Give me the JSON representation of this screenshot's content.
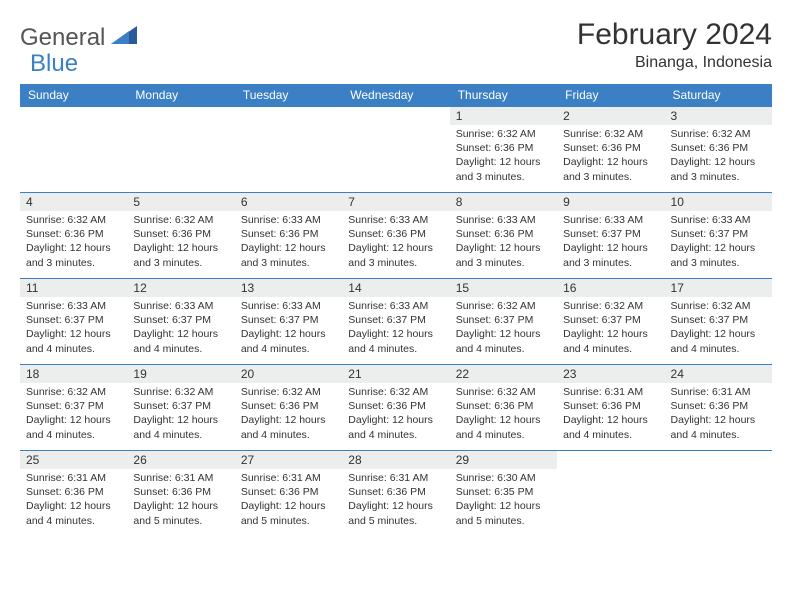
{
  "logo": {
    "general": "General",
    "blue": "Blue"
  },
  "title": "February 2024",
  "location": "Binanga, Indonesia",
  "header_color": "#3b7fc4",
  "day_names": [
    "Sunday",
    "Monday",
    "Tuesday",
    "Wednesday",
    "Thursday",
    "Friday",
    "Saturday"
  ],
  "weeks": [
    [
      {
        "day": "",
        "sunrise": "",
        "sunset": "",
        "daylight": ""
      },
      {
        "day": "",
        "sunrise": "",
        "sunset": "",
        "daylight": ""
      },
      {
        "day": "",
        "sunrise": "",
        "sunset": "",
        "daylight": ""
      },
      {
        "day": "",
        "sunrise": "",
        "sunset": "",
        "daylight": ""
      },
      {
        "day": "1",
        "sunrise": "Sunrise: 6:32 AM",
        "sunset": "Sunset: 6:36 PM",
        "daylight": "Daylight: 12 hours and 3 minutes."
      },
      {
        "day": "2",
        "sunrise": "Sunrise: 6:32 AM",
        "sunset": "Sunset: 6:36 PM",
        "daylight": "Daylight: 12 hours and 3 minutes."
      },
      {
        "day": "3",
        "sunrise": "Sunrise: 6:32 AM",
        "sunset": "Sunset: 6:36 PM",
        "daylight": "Daylight: 12 hours and 3 minutes."
      }
    ],
    [
      {
        "day": "4",
        "sunrise": "Sunrise: 6:32 AM",
        "sunset": "Sunset: 6:36 PM",
        "daylight": "Daylight: 12 hours and 3 minutes."
      },
      {
        "day": "5",
        "sunrise": "Sunrise: 6:32 AM",
        "sunset": "Sunset: 6:36 PM",
        "daylight": "Daylight: 12 hours and 3 minutes."
      },
      {
        "day": "6",
        "sunrise": "Sunrise: 6:33 AM",
        "sunset": "Sunset: 6:36 PM",
        "daylight": "Daylight: 12 hours and 3 minutes."
      },
      {
        "day": "7",
        "sunrise": "Sunrise: 6:33 AM",
        "sunset": "Sunset: 6:36 PM",
        "daylight": "Daylight: 12 hours and 3 minutes."
      },
      {
        "day": "8",
        "sunrise": "Sunrise: 6:33 AM",
        "sunset": "Sunset: 6:36 PM",
        "daylight": "Daylight: 12 hours and 3 minutes."
      },
      {
        "day": "9",
        "sunrise": "Sunrise: 6:33 AM",
        "sunset": "Sunset: 6:37 PM",
        "daylight": "Daylight: 12 hours and 3 minutes."
      },
      {
        "day": "10",
        "sunrise": "Sunrise: 6:33 AM",
        "sunset": "Sunset: 6:37 PM",
        "daylight": "Daylight: 12 hours and 3 minutes."
      }
    ],
    [
      {
        "day": "11",
        "sunrise": "Sunrise: 6:33 AM",
        "sunset": "Sunset: 6:37 PM",
        "daylight": "Daylight: 12 hours and 4 minutes."
      },
      {
        "day": "12",
        "sunrise": "Sunrise: 6:33 AM",
        "sunset": "Sunset: 6:37 PM",
        "daylight": "Daylight: 12 hours and 4 minutes."
      },
      {
        "day": "13",
        "sunrise": "Sunrise: 6:33 AM",
        "sunset": "Sunset: 6:37 PM",
        "daylight": "Daylight: 12 hours and 4 minutes."
      },
      {
        "day": "14",
        "sunrise": "Sunrise: 6:33 AM",
        "sunset": "Sunset: 6:37 PM",
        "daylight": "Daylight: 12 hours and 4 minutes."
      },
      {
        "day": "15",
        "sunrise": "Sunrise: 6:32 AM",
        "sunset": "Sunset: 6:37 PM",
        "daylight": "Daylight: 12 hours and 4 minutes."
      },
      {
        "day": "16",
        "sunrise": "Sunrise: 6:32 AM",
        "sunset": "Sunset: 6:37 PM",
        "daylight": "Daylight: 12 hours and 4 minutes."
      },
      {
        "day": "17",
        "sunrise": "Sunrise: 6:32 AM",
        "sunset": "Sunset: 6:37 PM",
        "daylight": "Daylight: 12 hours and 4 minutes."
      }
    ],
    [
      {
        "day": "18",
        "sunrise": "Sunrise: 6:32 AM",
        "sunset": "Sunset: 6:37 PM",
        "daylight": "Daylight: 12 hours and 4 minutes."
      },
      {
        "day": "19",
        "sunrise": "Sunrise: 6:32 AM",
        "sunset": "Sunset: 6:37 PM",
        "daylight": "Daylight: 12 hours and 4 minutes."
      },
      {
        "day": "20",
        "sunrise": "Sunrise: 6:32 AM",
        "sunset": "Sunset: 6:36 PM",
        "daylight": "Daylight: 12 hours and 4 minutes."
      },
      {
        "day": "21",
        "sunrise": "Sunrise: 6:32 AM",
        "sunset": "Sunset: 6:36 PM",
        "daylight": "Daylight: 12 hours and 4 minutes."
      },
      {
        "day": "22",
        "sunrise": "Sunrise: 6:32 AM",
        "sunset": "Sunset: 6:36 PM",
        "daylight": "Daylight: 12 hours and 4 minutes."
      },
      {
        "day": "23",
        "sunrise": "Sunrise: 6:31 AM",
        "sunset": "Sunset: 6:36 PM",
        "daylight": "Daylight: 12 hours and 4 minutes."
      },
      {
        "day": "24",
        "sunrise": "Sunrise: 6:31 AM",
        "sunset": "Sunset: 6:36 PM",
        "daylight": "Daylight: 12 hours and 4 minutes."
      }
    ],
    [
      {
        "day": "25",
        "sunrise": "Sunrise: 6:31 AM",
        "sunset": "Sunset: 6:36 PM",
        "daylight": "Daylight: 12 hours and 4 minutes."
      },
      {
        "day": "26",
        "sunrise": "Sunrise: 6:31 AM",
        "sunset": "Sunset: 6:36 PM",
        "daylight": "Daylight: 12 hours and 5 minutes."
      },
      {
        "day": "27",
        "sunrise": "Sunrise: 6:31 AM",
        "sunset": "Sunset: 6:36 PM",
        "daylight": "Daylight: 12 hours and 5 minutes."
      },
      {
        "day": "28",
        "sunrise": "Sunrise: 6:31 AM",
        "sunset": "Sunset: 6:36 PM",
        "daylight": "Daylight: 12 hours and 5 minutes."
      },
      {
        "day": "29",
        "sunrise": "Sunrise: 6:30 AM",
        "sunset": "Sunset: 6:35 PM",
        "daylight": "Daylight: 12 hours and 5 minutes."
      },
      {
        "day": "",
        "sunrise": "",
        "sunset": "",
        "daylight": ""
      },
      {
        "day": "",
        "sunrise": "",
        "sunset": "",
        "daylight": ""
      }
    ]
  ]
}
